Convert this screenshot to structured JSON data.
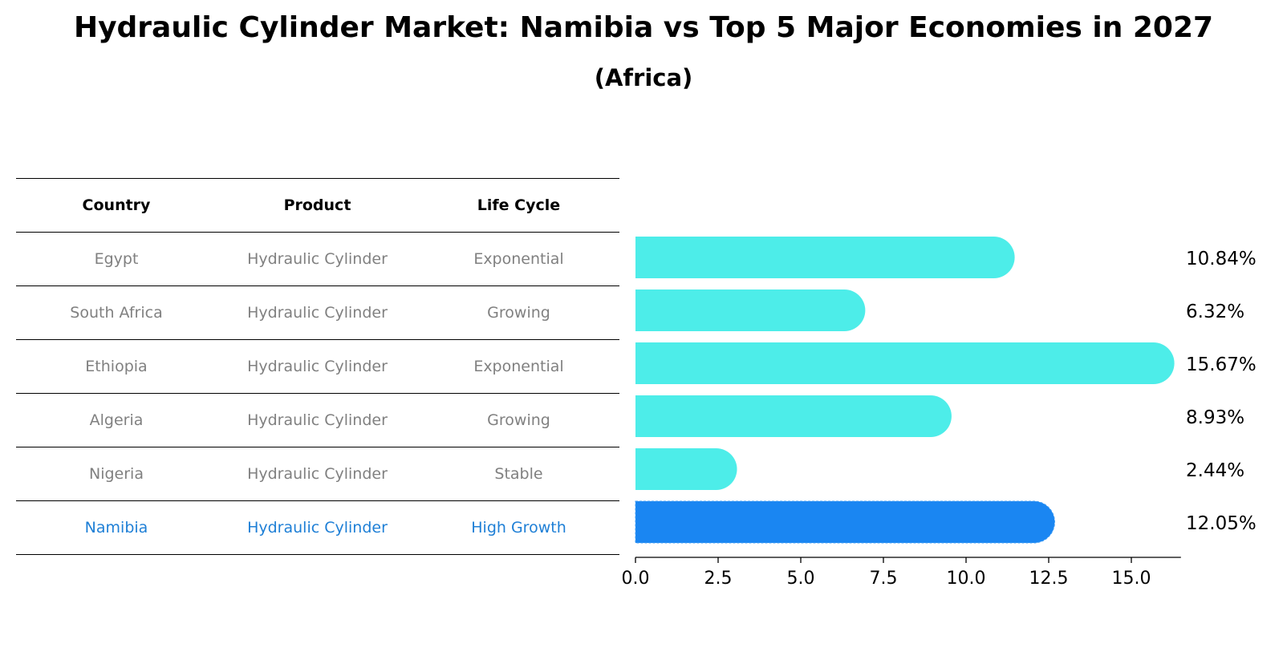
{
  "title": "Hydraulic Cylinder Market: Namibia vs Top 5 Major Economies in 2027",
  "subtitle": "(Africa)",
  "table": {
    "headers": [
      "Country",
      "Product",
      "Life Cycle"
    ],
    "rows": [
      [
        "Egypt",
        "Hydraulic Cylinder",
        "Exponential"
      ],
      [
        "South Africa",
        "Hydraulic Cylinder",
        "Growing"
      ],
      [
        "Ethiopia",
        "Hydraulic Cylinder",
        "Exponential"
      ],
      [
        "Algeria",
        "Hydraulic Cylinder",
        "Growing"
      ],
      [
        "Nigeria",
        "Hydraulic Cylinder",
        "Stable"
      ],
      [
        "Namibia",
        "Hydraulic Cylinder",
        "High Growth"
      ]
    ]
  },
  "chart_data": {
    "type": "bar",
    "orientation": "horizontal",
    "categories": [
      "Egypt",
      "South Africa",
      "Ethiopia",
      "Algeria",
      "Nigeria",
      "Namibia"
    ],
    "values": [
      10.84,
      6.32,
      15.67,
      8.93,
      2.44,
      12.05
    ],
    "value_labels": [
      "10.84%",
      "6.32%",
      "15.67%",
      "8.93%",
      "2.44%",
      "12.05%"
    ],
    "xticks": [
      "0.0",
      "2.5",
      "5.0",
      "7.5",
      "10.0",
      "12.5",
      "15.0"
    ],
    "xtick_values": [
      0,
      2.5,
      5,
      7.5,
      10,
      12.5,
      15
    ],
    "xlim": [
      0,
      16.5
    ],
    "highlight": "Namibia",
    "colors": {
      "bar": "#4dede9",
      "highlight": "#1a86f2",
      "text": "#000000"
    }
  }
}
